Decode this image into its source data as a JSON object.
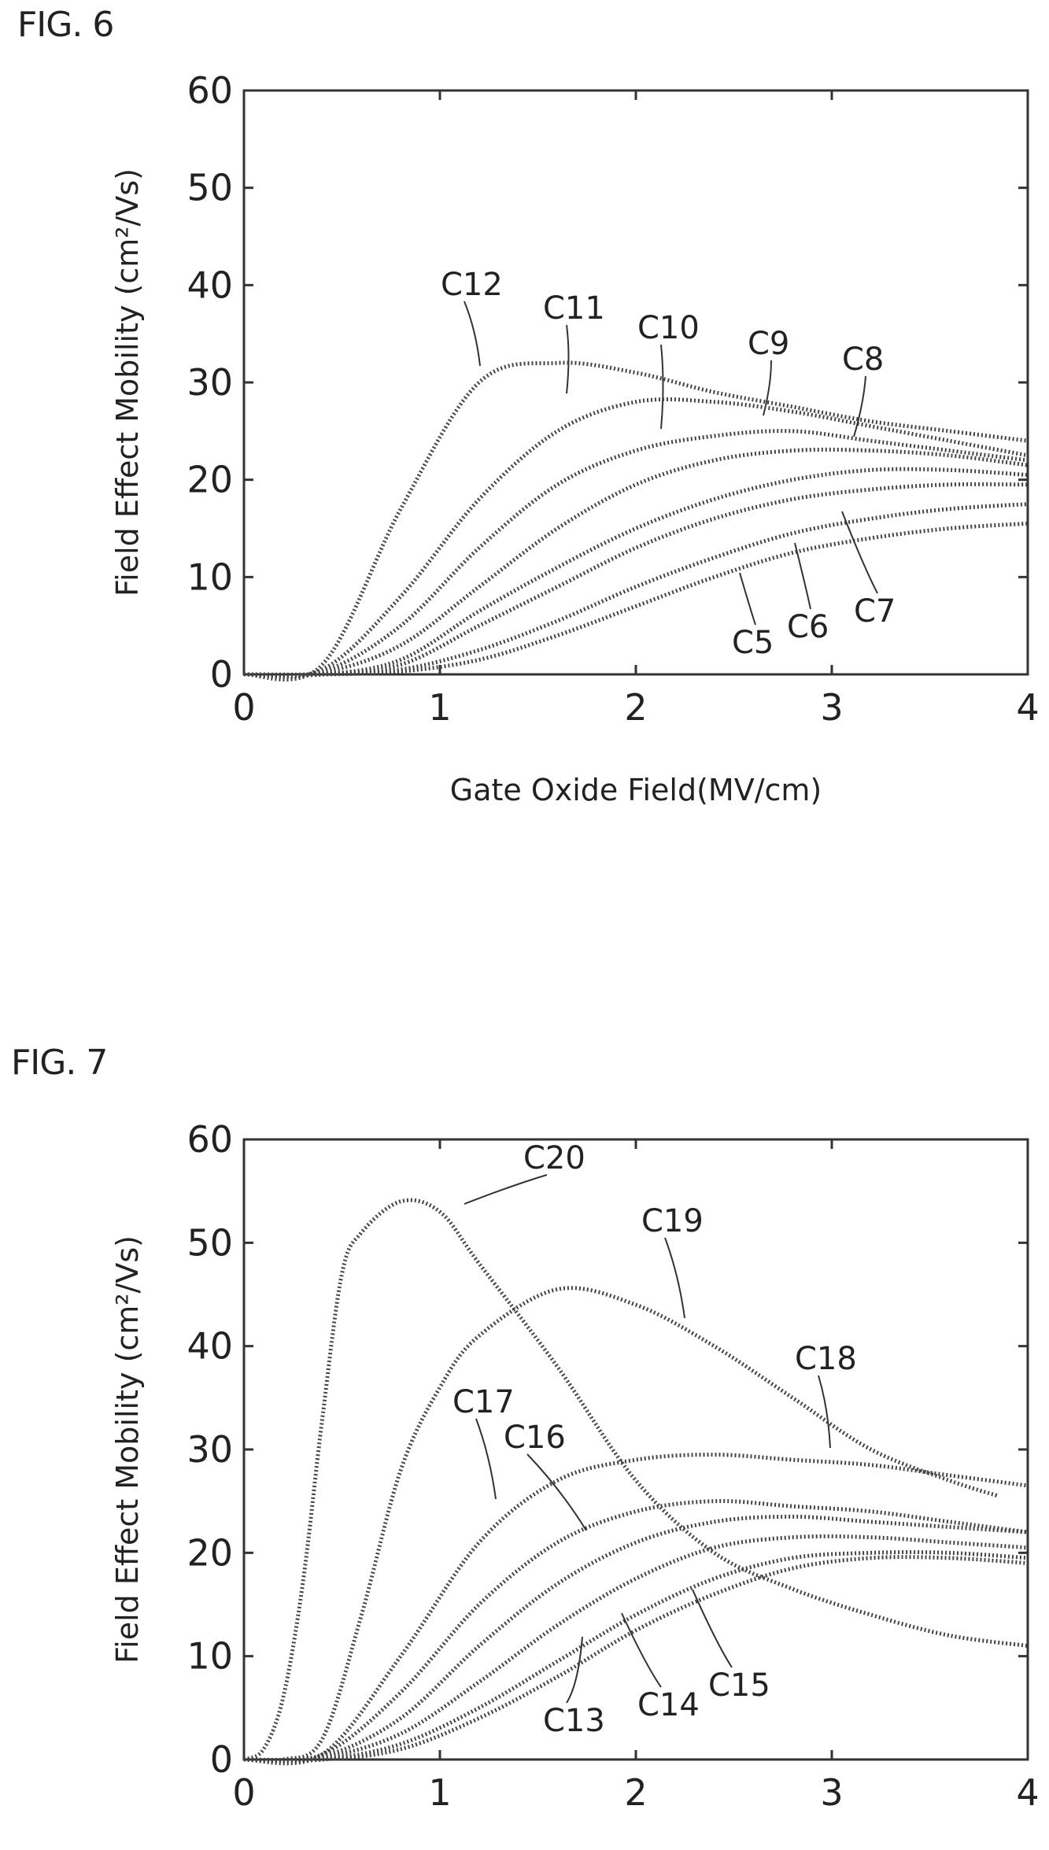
{
  "figures": [
    {
      "label": "FIG. 6",
      "chart_data": {
        "type": "line",
        "xlabel": "Gate Oxide Field(MV/cm)",
        "ylabel": "Field Effect Mobility (cm²/Vs)",
        "xlim": [
          0,
          4
        ],
        "ylim": [
          0,
          60
        ],
        "xticks": [
          "0",
          "1",
          "2",
          "3",
          "4"
        ],
        "yticks": [
          "0",
          "10",
          "20",
          "30",
          "40",
          "50",
          "60"
        ],
        "grid": false,
        "series": [
          {
            "name": "C5",
            "x": [
              0,
              0.4,
              0.8,
              1.2,
              1.6,
              2.0,
              2.4,
              2.8,
              3.2,
              3.6,
              4.0
            ],
            "y": [
              0,
              0,
              0.3,
              1.5,
              4,
              7,
              10,
              12.5,
              14,
              15,
              15.5
            ]
          },
          {
            "name": "C6",
            "x": [
              0,
              0.4,
              0.8,
              1.2,
              1.6,
              2.0,
              2.4,
              2.8,
              3.2,
              3.6,
              4.0
            ],
            "y": [
              0,
              0,
              0.5,
              2.5,
              5.5,
              9,
              12,
              14.5,
              16,
              17,
              17.5
            ]
          },
          {
            "name": "C7",
            "x": [
              0,
              0.4,
              0.8,
              1.2,
              1.6,
              2.0,
              2.4,
              2.8,
              3.2,
              3.6,
              4.0
            ],
            "y": [
              0,
              0,
              1,
              5,
              9,
              13,
              16,
              18,
              19,
              19.5,
              19.5
            ]
          },
          {
            "name": "C8",
            "x": [
              0,
              0.4,
              0.8,
              1.2,
              1.6,
              2.0,
              2.4,
              2.8,
              3.2,
              3.6,
              4.0
            ],
            "y": [
              0,
              0,
              1.5,
              6.5,
              11,
              15,
              18,
              20,
              21,
              21,
              20.5
            ]
          },
          {
            "name": "C9",
            "x": [
              0,
              0.4,
              0.8,
              1.2,
              1.6,
              2.0,
              2.4,
              2.8,
              3.2,
              3.6,
              4.0
            ],
            "y": [
              0,
              0.2,
              3,
              9,
              15,
              19.5,
              22,
              23,
              23,
              22.5,
              21.5
            ]
          },
          {
            "name": "C10",
            "x": [
              0,
              0.4,
              0.8,
              1.2,
              1.6,
              2.0,
              2.4,
              2.8,
              3.2,
              3.6,
              4.0
            ],
            "y": [
              0,
              0.3,
              5,
              13,
              19.5,
              23,
              24.5,
              25,
              24,
              23,
              22
            ]
          },
          {
            "name": "C11",
            "x": [
              0,
              0.4,
              0.8,
              1.2,
              1.6,
              2.0,
              2.4,
              2.8,
              3.2,
              3.6,
              4.0
            ],
            "y": [
              0,
              0.5,
              8,
              18,
              25,
              28,
              28,
              27,
              25.5,
              24,
              22.5
            ]
          },
          {
            "name": "C12",
            "x": [
              0,
              0.4,
              0.8,
              1.2,
              1.6,
              2.0,
              2.4,
              2.8,
              3.2,
              3.6,
              4.0
            ],
            "y": [
              0,
              1,
              17,
              30,
              32,
              31,
              29,
              27.5,
              26,
              25,
              24
            ]
          }
        ]
      }
    },
    {
      "label": "FIG. 7",
      "chart_data": {
        "type": "line",
        "xlabel": "Gate Oxide Field(MV/cm)",
        "ylabel": "Field Effect Mobility (cm²/Vs)",
        "xlim": [
          0,
          4
        ],
        "ylim": [
          0,
          60
        ],
        "xticks": [
          "0",
          "1",
          "2",
          "3",
          "4"
        ],
        "yticks": [
          "0",
          "10",
          "20",
          "30",
          "40",
          "50",
          "60"
        ],
        "grid": false,
        "series": [
          {
            "name": "C13",
            "x": [
              0,
              0.4,
              0.8,
              1.2,
              1.6,
              2.0,
              2.4,
              2.8,
              3.2,
              3.6,
              4.0
            ],
            "y": [
              0,
              0,
              1,
              4,
              8,
              12.5,
              16,
              18.5,
              19.5,
              19.5,
              19
            ]
          },
          {
            "name": "C14",
            "x": [
              0,
              0.4,
              0.8,
              1.2,
              1.6,
              2.0,
              2.4,
              2.8,
              3.2,
              3.6,
              4.0
            ],
            "y": [
              0,
              0,
              1.5,
              5,
              9.5,
              14,
              17.5,
              19.5,
              20,
              20,
              19.5
            ]
          },
          {
            "name": "C15",
            "x": [
              0,
              0.4,
              0.8,
              1.2,
              1.6,
              2.0,
              2.4,
              2.8,
              3.2,
              3.6,
              4.0
            ],
            "y": [
              0,
              0.2,
              2.5,
              7.5,
              13,
              17.5,
              20.5,
              21.5,
              21.5,
              21,
              20.5
            ]
          },
          {
            "name": "C16",
            "x": [
              0,
              0.4,
              0.8,
              1.2,
              1.6,
              2.0,
              2.4,
              2.8,
              3.2,
              3.6,
              4.0
            ],
            "y": [
              0,
              0.3,
              4,
              11,
              17,
              21,
              23,
              23.5,
              23,
              22.5,
              22
            ]
          },
          {
            "name": "C17",
            "x": [
              0,
              0.4,
              0.8,
              1.2,
              1.6,
              2.0,
              2.4,
              2.8,
              3.2,
              3.6,
              4.0
            ],
            "y": [
              0,
              0.5,
              6.5,
              15,
              21,
              24,
              25,
              24.5,
              24,
              23,
              22
            ]
          },
          {
            "name": "C18",
            "x": [
              0,
              0.4,
              0.8,
              1.2,
              1.6,
              2.0,
              2.4,
              2.8,
              3.2,
              3.6,
              4.0
            ],
            "y": [
              0,
              0.5,
              10,
              21,
              27,
              29,
              29.5,
              29,
              28.5,
              27.5,
              26.5
            ]
          },
          {
            "name": "C19",
            "x": [
              0,
              0.2,
              0.4,
              0.6,
              0.8,
              1.0,
              1.2,
              1.6,
              2.0,
              2.4,
              2.8,
              3.2,
              3.6,
              3.85
            ],
            "y": [
              0,
              0,
              2,
              14,
              28,
              36,
              41,
              45.5,
              44,
              40,
              35,
              30,
              27,
              25.5
            ]
          },
          {
            "name": "C20",
            "x": [
              0,
              0.1,
              0.2,
              0.3,
              0.4,
              0.5,
              0.6,
              0.8,
              1.0,
              1.2,
              1.6,
              2.0,
              2.4,
              2.8,
              3.2,
              3.6,
              4.0
            ],
            "y": [
              0,
              1,
              6,
              17,
              33,
              47,
              51,
              54,
              53,
              48,
              38,
              27,
              20,
              16.5,
              14,
              12,
              11
            ]
          }
        ]
      }
    }
  ]
}
